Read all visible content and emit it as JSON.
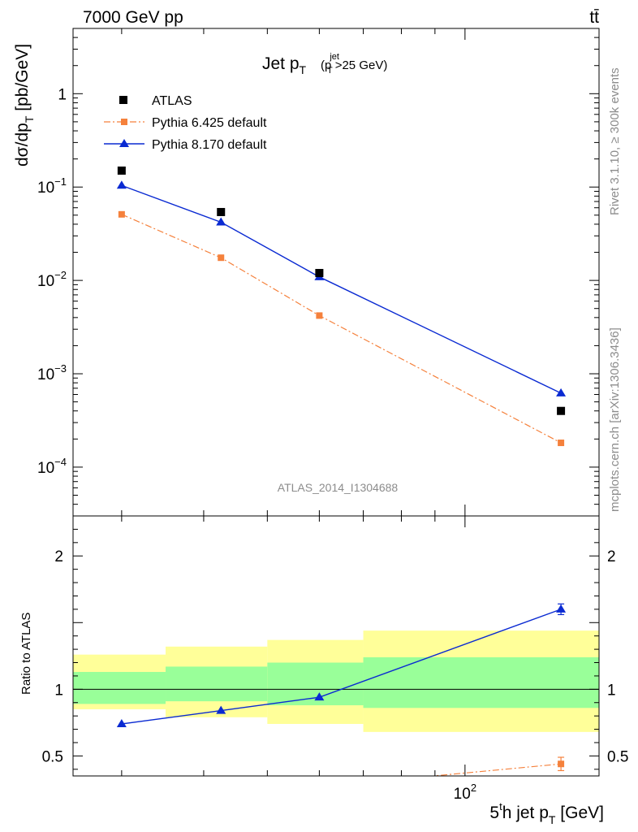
{
  "header": {
    "left": "7000 GeV pp",
    "right": "tt̄"
  },
  "side_labels": {
    "rivet": "Rivet 3.1.10, ≥ 300k events",
    "mcplots": "mcplots.cern.ch [arXiv:1306.3436]"
  },
  "chart_data": [
    {
      "type": "scatter",
      "title_main": "Jet p",
      "title_sub": "T",
      "title_cut_open": "(p",
      "title_cut_sup": "jet",
      "title_cut_sub": "T",
      "title_cut_close": ">25 GeV)",
      "ylabel_main": "dσ/dp",
      "ylabel_sub": "T",
      "ylabel_unit": " [pb/GeV]",
      "yscale": "log",
      "ylim": [
        3e-05,
        5
      ],
      "xscale": "log",
      "xlim": [
        25.3,
        160
      ],
      "analysis_id": "ATLAS_2014_I1304688",
      "x": [
        30,
        42.5,
        60,
        140
      ],
      "x_edges": [
        25.3,
        35,
        50,
        70,
        160
      ],
      "y_tick_labels": [
        {
          "base": "10",
          "exp": "−4"
        },
        {
          "base": "10",
          "exp": "−3"
        },
        {
          "base": "10",
          "exp": "−2"
        },
        {
          "base": "10",
          "exp": "−1"
        },
        {
          "base": "1",
          "exp": ""
        }
      ],
      "y_tick_values": [
        0.0001,
        0.001,
        0.01,
        0.1,
        1
      ],
      "legend_position": "top-left",
      "series": [
        {
          "name": "ATLAS",
          "values": [
            0.15,
            0.054,
            0.012,
            0.0004
          ],
          "color": "#000000",
          "marker": "square"
        },
        {
          "name": "Pythia 6.425 default",
          "values": [
            0.051,
            0.0175,
            0.0042,
            0.000182
          ],
          "color": "#f5813c",
          "marker": "square",
          "line": "dashdot"
        },
        {
          "name": "Pythia 8.170 default",
          "values": [
            0.104,
            0.042,
            0.0109,
            0.00062
          ],
          "color": "#0a2ad2",
          "marker": "triangle",
          "line": "solid"
        }
      ]
    },
    {
      "type": "scatter",
      "ylabel": "Ratio to ATLAS",
      "xlabel_main": "5",
      "xlabel_sup": "t",
      "xlabel_rest": "h jet p",
      "xlabel_sub": "T",
      "xlabel_unit": " [GeV]",
      "ylim": [
        0.35,
        2.3
      ],
      "xscale": "log",
      "xlim": [
        25.3,
        160
      ],
      "x_major_tick": {
        "value": 100,
        "base": "10",
        "exp": "2"
      },
      "y_tick_values": [
        0.5,
        1,
        2
      ],
      "y_tick_labels": [
        "0.5",
        "1",
        "2"
      ],
      "bands": {
        "x_edges": [
          25.3,
          35,
          50,
          70,
          160
        ],
        "yellow": [
          [
            0.85,
            1.26
          ],
          [
            0.79,
            1.32
          ],
          [
            0.74,
            1.37
          ],
          [
            0.68,
            1.44
          ]
        ],
        "green": [
          [
            0.89,
            1.13
          ],
          [
            0.91,
            1.17
          ],
          [
            0.88,
            1.2
          ],
          [
            0.86,
            1.24
          ]
        ],
        "yellow_color": "#ffff99",
        "green_color": "#99ff99"
      },
      "series": [
        {
          "name": "Pythia 6.425 default",
          "x": [
            70,
            140
          ],
          "values": [
            0.3,
            0.44
          ],
          "errors": [
            0,
            0.05
          ],
          "color": "#f5813c",
          "marker": "square",
          "line": "dashdot"
        },
        {
          "name": "Pythia 8.170 default",
          "x": [
            30,
            42.5,
            60,
            140
          ],
          "values": [
            0.74,
            0.84,
            0.94,
            1.6
          ],
          "errors": [
            0,
            0,
            0,
            0.04
          ],
          "color": "#0a2ad2",
          "marker": "triangle",
          "line": "solid"
        }
      ]
    }
  ]
}
